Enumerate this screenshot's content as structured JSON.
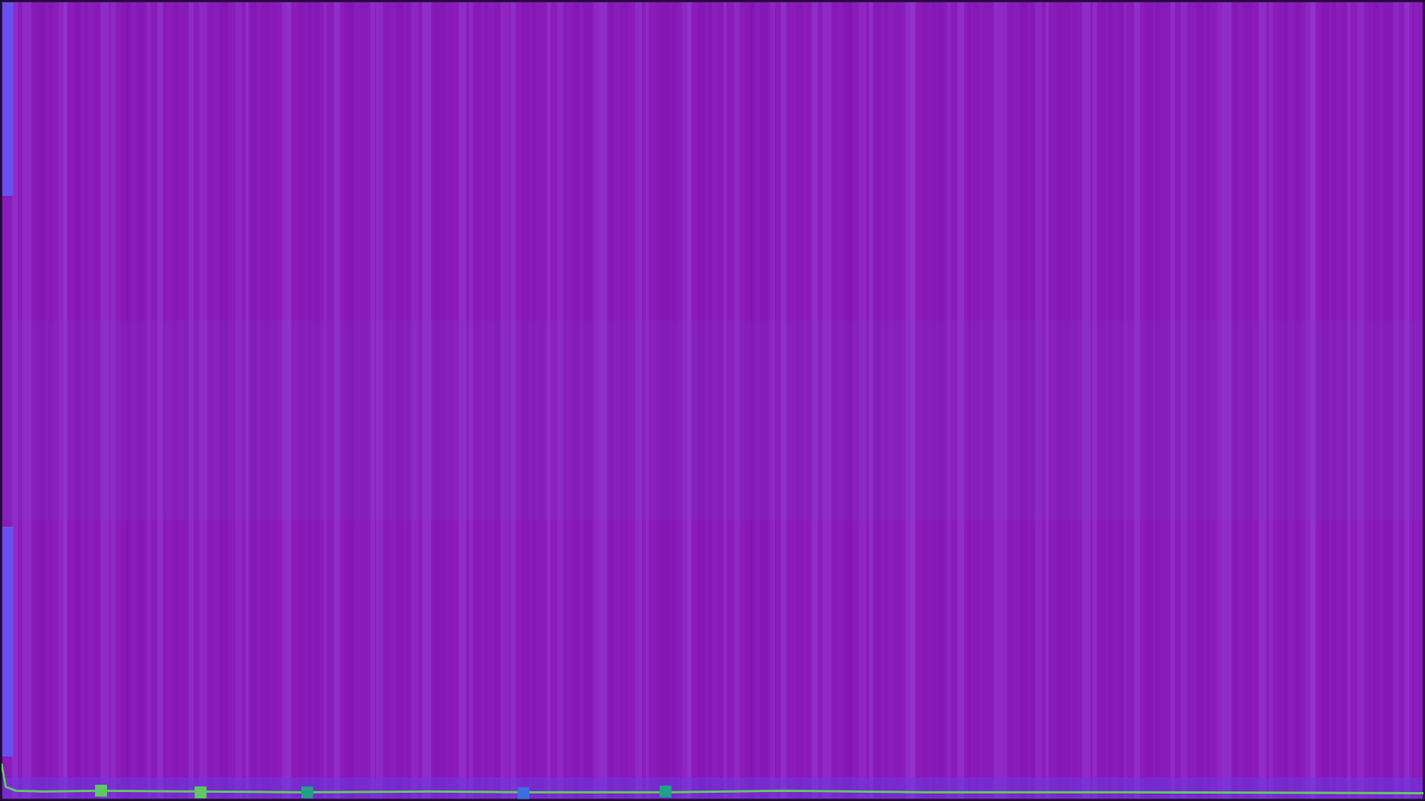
{
  "chart_data": {
    "type": "line",
    "xlim": [
      0,
      100
    ],
    "ylim": [
      0,
      100
    ],
    "tick_labels": false,
    "grid": false,
    "series": [
      {
        "type": "line",
        "color": "#5ec962",
        "x": [
          0,
          0.3,
          1,
          3,
          7,
          14,
          21,
          30,
          37,
          47,
          55,
          65,
          80,
          100
        ],
        "values": [
          4.5,
          1.6,
          1.1,
          1.0,
          1.1,
          1.0,
          0.9,
          1.0,
          0.9,
          0.9,
          1.1,
          0.9,
          0.9,
          0.8
        ]
      },
      {
        "type": "scatter",
        "marker": "square",
        "colors": [
          "#5ec962",
          "#5ec962",
          "#21a08a",
          "#3b6fe0",
          "#21a08a"
        ],
        "x": [
          7,
          14,
          21.5,
          36.7,
          46.7
        ],
        "values": [
          1.1,
          0.9,
          0.9,
          0.8,
          1.0
        ]
      }
    ]
  }
}
